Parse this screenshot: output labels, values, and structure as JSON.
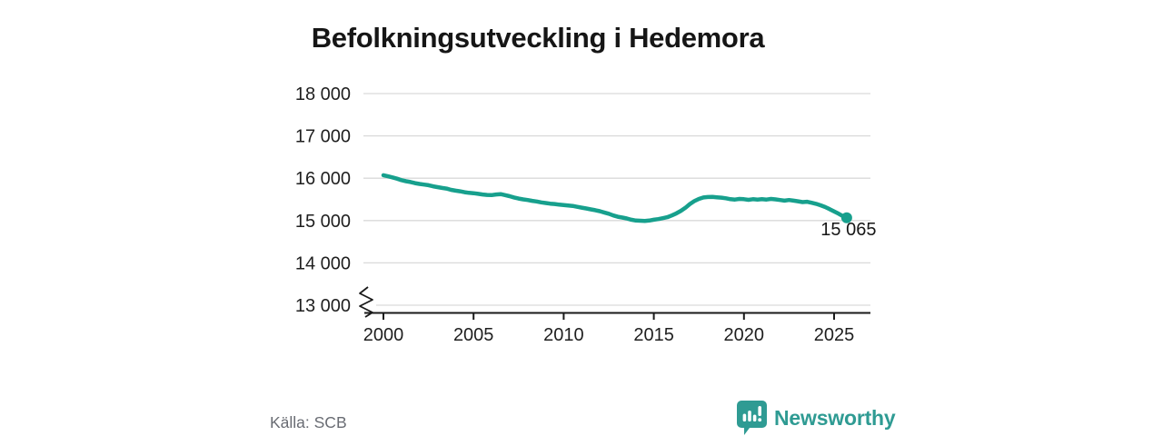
{
  "page": {
    "title": "Befolkningsutveckling i Hedemora"
  },
  "footer": {
    "source": "Källa: SCB",
    "brand": "Newsworthy"
  },
  "icons": {
    "brand_icon": "newsworthy-speech-bubble-bar-chart-icon",
    "axis_break_icon": "y-axis-break-zigzag"
  },
  "colors": {
    "background": "#ffffff",
    "line": "#17a08d",
    "dot": "#17a08d",
    "grid": "#d9d9d9",
    "axis": "#1a1a1a",
    "tick_text": "#1f1f1f",
    "annotation_text": "#161616",
    "muted_text": "#696c73",
    "brand": "#2f9b93"
  },
  "chart_data": {
    "type": "line",
    "title": "Befolkningsutveckling i Hedemora",
    "xlabel": "",
    "ylabel": "",
    "grid": "horizontal",
    "legend": "none",
    "broken_y_axis": true,
    "y_axis": {
      "min": 13000,
      "max": 18000,
      "ticks": [
        {
          "value": 18000,
          "label": "18 000"
        },
        {
          "value": 17000,
          "label": "17 000"
        },
        {
          "value": 16000,
          "label": "16 000"
        },
        {
          "value": 15000,
          "label": "15 000"
        },
        {
          "value": 14000,
          "label": "14 000"
        },
        {
          "value": 13000,
          "label": "13 000"
        }
      ]
    },
    "x_axis": {
      "min": 1998.9,
      "max": 2027.0,
      "ticks": [
        {
          "value": 2000,
          "label": "2000"
        },
        {
          "value": 2005,
          "label": "2005"
        },
        {
          "value": 2010,
          "label": "2010"
        },
        {
          "value": 2015,
          "label": "2015"
        },
        {
          "value": 2020,
          "label": "2020"
        },
        {
          "value": 2025,
          "label": "2025"
        }
      ]
    },
    "end_annotation": {
      "x": 2025.7,
      "value": 15065,
      "label": "15 065"
    },
    "series": [
      {
        "name": "Befolkning i Hedemora",
        "points": [
          [
            2000.0,
            16070
          ],
          [
            2000.25,
            16045
          ],
          [
            2000.5,
            16020
          ],
          [
            2000.75,
            15990
          ],
          [
            2001.0,
            15955
          ],
          [
            2001.25,
            15930
          ],
          [
            2001.5,
            15910
          ],
          [
            2001.75,
            15885
          ],
          [
            2002.0,
            15865
          ],
          [
            2002.25,
            15850
          ],
          [
            2002.5,
            15835
          ],
          [
            2002.75,
            15810
          ],
          [
            2003.0,
            15790
          ],
          [
            2003.25,
            15770
          ],
          [
            2003.5,
            15755
          ],
          [
            2003.75,
            15725
          ],
          [
            2004.0,
            15705
          ],
          [
            2004.25,
            15690
          ],
          [
            2004.5,
            15670
          ],
          [
            2004.75,
            15655
          ],
          [
            2005.0,
            15645
          ],
          [
            2005.25,
            15630
          ],
          [
            2005.5,
            15615
          ],
          [
            2005.75,
            15605
          ],
          [
            2006.0,
            15600
          ],
          [
            2006.25,
            15615
          ],
          [
            2006.5,
            15625
          ],
          [
            2006.75,
            15600
          ],
          [
            2007.0,
            15575
          ],
          [
            2007.25,
            15545
          ],
          [
            2007.5,
            15520
          ],
          [
            2007.75,
            15500
          ],
          [
            2008.0,
            15485
          ],
          [
            2008.25,
            15465
          ],
          [
            2008.5,
            15450
          ],
          [
            2008.75,
            15430
          ],
          [
            2009.0,
            15415
          ],
          [
            2009.25,
            15400
          ],
          [
            2009.5,
            15390
          ],
          [
            2009.75,
            15375
          ],
          [
            2010.0,
            15365
          ],
          [
            2010.25,
            15355
          ],
          [
            2010.5,
            15345
          ],
          [
            2010.75,
            15325
          ],
          [
            2011.0,
            15305
          ],
          [
            2011.25,
            15285
          ],
          [
            2011.5,
            15265
          ],
          [
            2011.75,
            15245
          ],
          [
            2012.0,
            15220
          ],
          [
            2012.25,
            15190
          ],
          [
            2012.5,
            15160
          ],
          [
            2012.75,
            15120
          ],
          [
            2013.0,
            15090
          ],
          [
            2013.25,
            15070
          ],
          [
            2013.5,
            15050
          ],
          [
            2013.75,
            15020
          ],
          [
            2014.0,
            15000
          ],
          [
            2014.25,
            14995
          ],
          [
            2014.5,
            14990
          ],
          [
            2014.75,
            15000
          ],
          [
            2015.0,
            15020
          ],
          [
            2015.25,
            15035
          ],
          [
            2015.5,
            15055
          ],
          [
            2015.75,
            15080
          ],
          [
            2016.0,
            15120
          ],
          [
            2016.25,
            15170
          ],
          [
            2016.5,
            15230
          ],
          [
            2016.75,
            15300
          ],
          [
            2017.0,
            15390
          ],
          [
            2017.25,
            15460
          ],
          [
            2017.5,
            15510
          ],
          [
            2017.75,
            15545
          ],
          [
            2018.0,
            15555
          ],
          [
            2018.25,
            15560
          ],
          [
            2018.5,
            15550
          ],
          [
            2018.75,
            15540
          ],
          [
            2019.0,
            15525
          ],
          [
            2019.25,
            15505
          ],
          [
            2019.5,
            15495
          ],
          [
            2019.75,
            15510
          ],
          [
            2020.0,
            15505
          ],
          [
            2020.25,
            15490
          ],
          [
            2020.5,
            15505
          ],
          [
            2020.75,
            15495
          ],
          [
            2021.0,
            15505
          ],
          [
            2021.25,
            15495
          ],
          [
            2021.5,
            15510
          ],
          [
            2021.75,
            15500
          ],
          [
            2022.0,
            15485
          ],
          [
            2022.25,
            15470
          ],
          [
            2022.5,
            15485
          ],
          [
            2022.75,
            15470
          ],
          [
            2023.0,
            15455
          ],
          [
            2023.25,
            15435
          ],
          [
            2023.5,
            15445
          ],
          [
            2023.75,
            15420
          ],
          [
            2024.0,
            15395
          ],
          [
            2024.25,
            15360
          ],
          [
            2024.5,
            15320
          ],
          [
            2024.75,
            15270
          ],
          [
            2025.0,
            15215
          ],
          [
            2025.25,
            15160
          ],
          [
            2025.42,
            15120
          ],
          [
            2025.58,
            15090
          ],
          [
            2025.7,
            15065
          ]
        ]
      }
    ]
  }
}
